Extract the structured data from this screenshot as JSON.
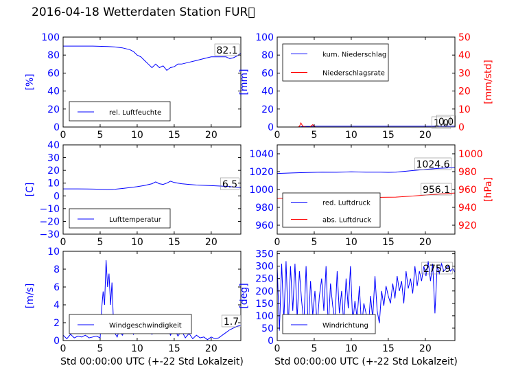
{
  "title": "2016-04-18 Wetterdaten Station FUR\u0000",
  "colors": {
    "blue": "#0000ff",
    "red": "#ff0000",
    "axis": "#000000"
  },
  "chart_data": [
    {
      "id": "humidity",
      "type": "line",
      "xlim": [
        0,
        24
      ],
      "xticks": [
        "0",
        "5",
        "10",
        "15",
        "20"
      ],
      "ylim": [
        0,
        100
      ],
      "yticks": [
        "0",
        "20",
        "40",
        "60",
        "80",
        "100"
      ],
      "ylabel": "[%]",
      "xlabel": "",
      "legend": "bottom-left",
      "value_box": "82.1",
      "series": [
        {
          "name": "rel. Luftfeuchte",
          "color": "#0000ff",
          "x": [
            0,
            2,
            4,
            6,
            7,
            8,
            9,
            9.5,
            10,
            10.5,
            11,
            11.5,
            12,
            12.5,
            13,
            13.5,
            14,
            14.5,
            15,
            15.5,
            16,
            17,
            18,
            19,
            20,
            21,
            22,
            22.5,
            23,
            23.5,
            24
          ],
          "y": [
            90,
            90,
            90,
            89.5,
            89,
            88,
            86,
            84,
            80,
            78,
            74,
            70,
            66,
            70,
            66,
            68,
            63,
            66,
            67,
            70,
            70,
            72,
            74,
            76,
            78,
            78,
            78,
            76,
            77,
            79,
            82
          ]
        }
      ]
    },
    {
      "id": "precipitation",
      "type": "line",
      "xlim": [
        0,
        24
      ],
      "xticks": [
        "0",
        "5",
        "10",
        "15",
        "20"
      ],
      "ylim": [
        0,
        100
      ],
      "yticks": [
        "0",
        "20",
        "40",
        "60",
        "80",
        "100"
      ],
      "ylabel": "[mm]",
      "ylim2": [
        0,
        50
      ],
      "yticks2": [
        "0",
        "10",
        "20",
        "30",
        "40",
        "50"
      ],
      "ylabel2": "[mm/std]",
      "legend": "top-left",
      "value_box": "1.0",
      "value_box2": "0.0",
      "series": [
        {
          "name": "kum. Niederschlag",
          "color": "#0000ff",
          "axis": "left",
          "x": [
            0,
            3,
            3.3,
            4.5,
            5,
            24
          ],
          "y": [
            0,
            0,
            0.5,
            0.8,
            1,
            1
          ]
        },
        {
          "name": "Niederschlagsrate",
          "color": "#ff0000",
          "axis": "right",
          "x": [
            0,
            2.8,
            3,
            3.2,
            3.4,
            3.6,
            4,
            4.4,
            4.8,
            5,
            5.2,
            6,
            24
          ],
          "y": [
            0,
            0,
            0.3,
            2.3,
            0.8,
            0.2,
            0,
            0,
            1.3,
            0.3,
            0,
            0,
            0
          ]
        }
      ]
    },
    {
      "id": "temperature",
      "type": "line",
      "xlim": [
        0,
        24
      ],
      "xticks": [
        "0",
        "5",
        "10",
        "15",
        "20"
      ],
      "ylim": [
        -30,
        40
      ],
      "yticks": [
        "−30",
        "−20",
        "−10",
        "0",
        "10",
        "20",
        "30",
        "40"
      ],
      "ylabel": "[C]",
      "legend": "bottom-left",
      "value_box": "6.5",
      "series": [
        {
          "name": "Lufttemperatur",
          "color": "#0000ff",
          "x": [
            0,
            2,
            4,
            5,
            6,
            7,
            8,
            9,
            10,
            11,
            12,
            12.5,
            13,
            13.5,
            14,
            14.5,
            15,
            16,
            17,
            18,
            20,
            22,
            24
          ],
          "y": [
            5.5,
            5.5,
            5.3,
            5.2,
            5,
            5.2,
            5.8,
            6.5,
            7.2,
            8.2,
            9.5,
            11,
            9.5,
            9,
            10,
            11.5,
            10.5,
            9.5,
            9,
            8.5,
            8,
            7.5,
            6.5
          ]
        }
      ]
    },
    {
      "id": "pressure",
      "type": "line",
      "xlim": [
        0,
        24
      ],
      "xticks": [
        "0",
        "5",
        "10",
        "15",
        "20"
      ],
      "ylim": [
        950,
        1050
      ],
      "yticks": [
        "960",
        "980",
        "1000",
        "1020",
        "1040"
      ],
      "ylabel": "",
      "ylim2": [
        910,
        1010
      ],
      "yticks2": [
        "920",
        "940",
        "960",
        "980",
        "1000"
      ],
      "ylabel2": "[hPa]",
      "legend": "bottom-left",
      "value_box": "1024.6",
      "value_box2": "956.1",
      "series": [
        {
          "name": "red. Luftdruck",
          "color": "#0000ff",
          "axis": "left",
          "x": [
            0,
            2,
            4,
            6,
            8,
            10,
            12,
            14,
            15,
            16,
            18,
            20,
            22,
            24
          ],
          "y": [
            1018,
            1018.5,
            1019,
            1019.5,
            1019.3,
            1019.8,
            1019.5,
            1019.5,
            1019.2,
            1019.5,
            1021,
            1022.5,
            1023.8,
            1024.6
          ]
        },
        {
          "name": "abs. Luftdruck",
          "color": "#ff0000",
          "axis": "right",
          "x": [
            0,
            2,
            4,
            6,
            8,
            10,
            12,
            14,
            16,
            18,
            20,
            22,
            24
          ],
          "y": [
            950,
            950.5,
            950.8,
            951,
            951,
            951.3,
            951.2,
            951.2,
            951.5,
            952.5,
            953.8,
            955,
            956.1
          ]
        }
      ]
    },
    {
      "id": "windspeed",
      "type": "line",
      "xlim": [
        0,
        24
      ],
      "xticks": [
        "0",
        "5",
        "10",
        "15",
        "20"
      ],
      "ylim": [
        0,
        10
      ],
      "yticks": [
        "0",
        "2",
        "4",
        "6",
        "8",
        "10"
      ],
      "ylabel": "[m/s]",
      "xlabel": "Std 00:00:00 UTC (+-22 Std Lokalzeit)",
      "legend": "bottom-left",
      "value_box": "1.7",
      "series": [
        {
          "name": "Windgeschwindigkeit",
          "color": "#0000ff",
          "x": [
            0,
            0.5,
            1,
            1.5,
            2,
            2.5,
            3,
            3.5,
            4,
            4.5,
            5,
            5.2,
            5.4,
            5.6,
            5.8,
            6,
            6.2,
            6.4,
            6.6,
            6.8,
            7,
            7.3,
            7.6,
            8,
            8.5,
            9,
            9.5,
            10,
            10.5,
            11,
            11.5,
            12,
            12.5,
            13,
            13.5,
            14,
            14.5,
            15,
            15.5,
            16,
            16.5,
            17,
            17.5,
            18,
            18.5,
            19,
            19.5,
            20,
            20.5,
            21,
            21.5,
            22,
            22.5,
            23,
            23.5,
            24
          ],
          "y": [
            0.6,
            0.2,
            0.7,
            0.3,
            0.5,
            0.4,
            0.6,
            0.3,
            0.4,
            0.5,
            0.3,
            3.5,
            5.5,
            4,
            9,
            6,
            7.5,
            4,
            6.5,
            2,
            0.8,
            0.4,
            1.2,
            0.6,
            1.3,
            1.6,
            0.7,
            1.8,
            0.9,
            1.3,
            1.6,
            0.7,
            1.8,
            1.1,
            0.8,
            1.6,
            0.6,
            1.4,
            0.5,
            1.1,
            0.3,
            0.8,
            0.2,
            0.6,
            0.3,
            0.4,
            0.1,
            0.4,
            0.2,
            0.3,
            0.6,
            0.9,
            1.2,
            1.4,
            1.6,
            1.7
          ]
        }
      ]
    },
    {
      "id": "winddir",
      "type": "line",
      "xlim": [
        0,
        24
      ],
      "xticks": [
        "0",
        "5",
        "10",
        "15",
        "20"
      ],
      "ylim": [
        0,
        360
      ],
      "yticks": [
        "0",
        "50",
        "100",
        "150",
        "200",
        "250",
        "300",
        "350"
      ],
      "ylabel": "[deg]",
      "xlabel": "Std 00:00:00 UTC (+-22 Std Lokalzeit)",
      "legend": "bottom-left",
      "value_box": "275.9",
      "series": [
        {
          "name": "Windrichtung",
          "color": "#0000ff",
          "x": [
            0,
            0.3,
            0.6,
            0.9,
            1.2,
            1.5,
            1.8,
            2.1,
            2.4,
            2.7,
            3,
            3.3,
            3.6,
            3.9,
            4.2,
            4.5,
            4.8,
            5.1,
            5.4,
            5.7,
            6,
            6.3,
            6.6,
            6.9,
            7.2,
            7.5,
            7.8,
            8.1,
            8.4,
            8.7,
            9,
            9.3,
            9.6,
            9.9,
            10.2,
            10.5,
            10.8,
            11.1,
            11.4,
            11.7,
            12,
            12.3,
            12.6,
            12.9,
            13.2,
            13.5,
            13.8,
            14.1,
            14.4,
            14.7,
            15,
            15.3,
            15.6,
            15.9,
            16.2,
            16.5,
            16.8,
            17.1,
            17.4,
            17.7,
            18,
            18.3,
            18.6,
            18.9,
            19.2,
            19.5,
            19.8,
            20.1,
            20.4,
            20.7,
            21,
            21.3,
            21.6,
            21.9,
            22.2,
            22.5,
            22.8,
            23.1,
            23.4,
            23.7,
            24
          ],
          "y": [
            300,
            40,
            310,
            80,
            320,
            60,
            300,
            120,
            310,
            90,
            280,
            160,
            70,
            300,
            40,
            240,
            100,
            200,
            60,
            180,
            250,
            120,
            300,
            50,
            230,
            140,
            80,
            280,
            110,
            200,
            60,
            250,
            130,
            300,
            70,
            160,
            90,
            220,
            50,
            150,
            110,
            40,
            180,
            90,
            260,
            120,
            70,
            200,
            140,
            220,
            180,
            150,
            230,
            170,
            260,
            200,
            240,
            150,
            280,
            210,
            250,
            190,
            300,
            220,
            280,
            240,
            300,
            260,
            320,
            240,
            310,
            110,
            300,
            270,
            310,
            280,
            290,
            300,
            280,
            290,
            276
          ]
        }
      ]
    }
  ]
}
